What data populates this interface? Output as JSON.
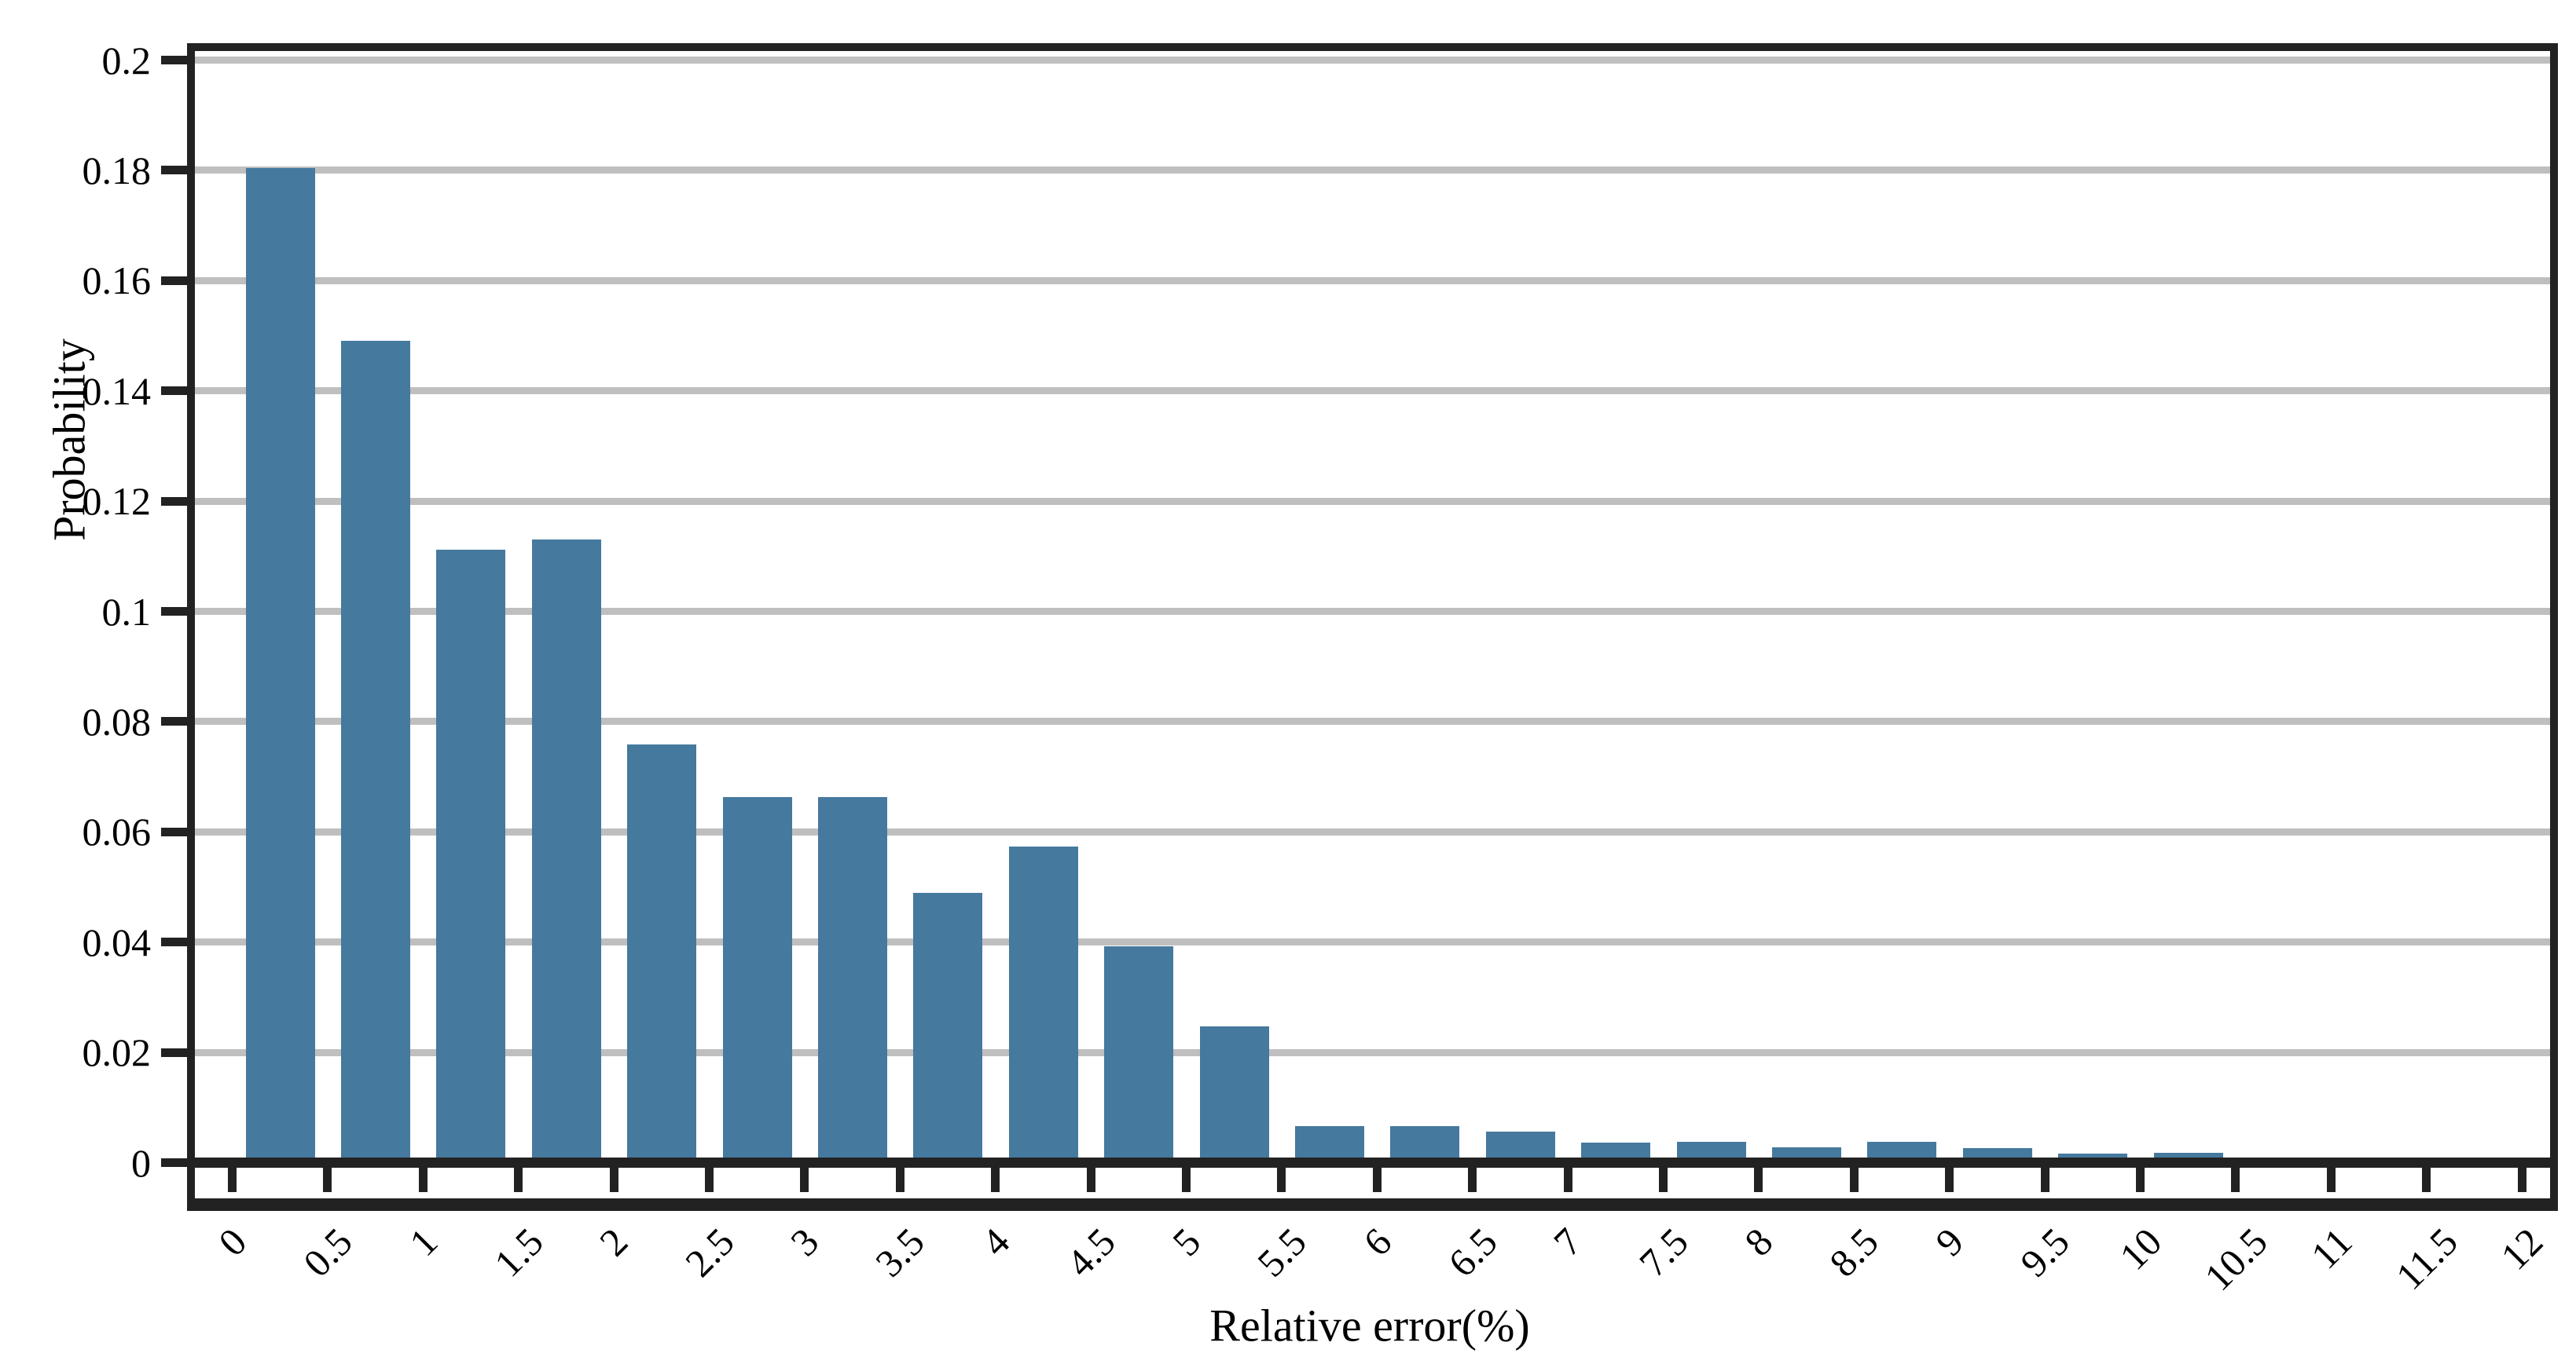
{
  "figure": {
    "background": "#ffffff"
  },
  "chart_data": {
    "type": "bar",
    "title": "",
    "xlabel": "Relative error(%)",
    "ylabel": "Probability",
    "bin_width": 0.5,
    "bin_edges": [
      0,
      0.5,
      1,
      1.5,
      2,
      2.5,
      3,
      3.5,
      4,
      4.5,
      5,
      5.5,
      6,
      6.5,
      7,
      7.5,
      8,
      8.5,
      9,
      9.5,
      10,
      10.5,
      11,
      11.5,
      12
    ],
    "values": [
      0.1804,
      0.1491,
      0.1112,
      0.1131,
      0.0759,
      0.0663,
      0.0663,
      0.0489,
      0.0574,
      0.0392,
      0.0247,
      0.0066,
      0.0066,
      0.0056,
      0.0037,
      0.0038,
      0.0028,
      0.0038,
      0.0027,
      0.0016,
      0.0018,
      0.0007,
      0.0,
      0.0008
    ],
    "x_tick_labels": [
      "0",
      "0.5",
      "1",
      "1.5",
      "2",
      "2.5",
      "3",
      "3.5",
      "4",
      "4.5",
      "5",
      "5.5",
      "6",
      "6.5",
      "7",
      "7.5",
      "8",
      "8.5",
      "9",
      "9.5",
      "10",
      "10.5",
      "11",
      "11.5",
      "12"
    ],
    "y_tick_labels": [
      "0",
      "0.02",
      "0.04",
      "0.06",
      "0.08",
      "0.1",
      "0.12",
      "0.14",
      "0.16",
      "0.18",
      "0.2"
    ],
    "ylim": [
      -0.008,
      0.202
    ],
    "grid": true,
    "legend_position": "none",
    "x_tick_rotation_deg": 45,
    "colors": {
      "bar": "#45799e",
      "grid": "#bfbfbf",
      "axis": "#222222",
      "text": "#000000"
    }
  }
}
